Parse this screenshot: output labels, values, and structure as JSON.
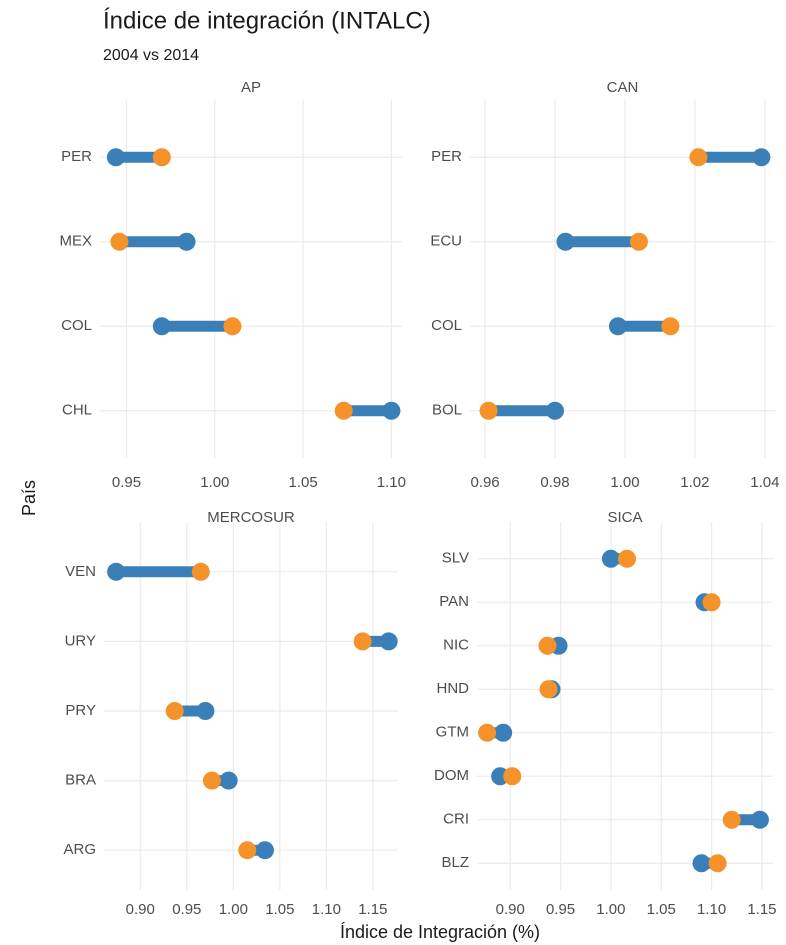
{
  "title": "Índice de integración (INTALC)",
  "subtitle": "2004 vs 2014",
  "x_label": "Índice de Integración (%)",
  "y_label": "País",
  "chart_data": [
    {
      "type": "dumbbell",
      "title": "AP",
      "categories": [
        "PER",
        "MEX",
        "COL",
        "CHL"
      ],
      "series": [
        {
          "color": "#3a7fb8",
          "values": [
            0.944,
            0.984,
            0.97,
            1.1
          ]
        },
        {
          "color": "#f5922a",
          "values": [
            0.97,
            0.946,
            1.01,
            1.073
          ]
        }
      ],
      "xlim": [
        0.935,
        1.106
      ],
      "xticks": [
        0.95,
        {
          "value": 1,
          "label": "1.00"
        },
        1.05,
        {
          "value": 1.1,
          "label": "1.10"
        }
      ],
      "grid": true
    },
    {
      "type": "dumbbell",
      "title": "CAN",
      "categories": [
        "PER",
        "ECU",
        "COL",
        "BOL"
      ],
      "series": [
        {
          "color": "#3a7fb8",
          "values": [
            1.039,
            0.983,
            0.998,
            0.98
          ]
        },
        {
          "color": "#f5922a",
          "values": [
            1.021,
            1.004,
            1.013,
            0.961
          ]
        }
      ],
      "xlim": [
        0.9557,
        1.0429
      ],
      "xticks": [
        0.96,
        0.98,
        {
          "value": 1,
          "label": "1.00"
        },
        1.02,
        1.04
      ],
      "grid": true
    },
    {
      "type": "dumbbell",
      "title": "MERCOSUR",
      "categories": [
        "VEN",
        "URY",
        "PRY",
        "BRA",
        "ARG"
      ],
      "series": [
        {
          "color": "#3a7fb8",
          "values": [
            0.874,
            1.167,
            0.97,
            0.995,
            1.034
          ]
        },
        {
          "color": "#f5922a",
          "values": [
            0.965,
            1.139,
            0.937,
            0.977,
            1.015
          ]
        }
      ],
      "xlim": [
        0.861,
        1.177
      ],
      "xticks": [
        {
          "value": 0.9,
          "label": "0.90"
        },
        0.95,
        {
          "value": 1,
          "label": "1.00"
        },
        1.05,
        {
          "value": 1.1,
          "label": "1.10"
        },
        1.15
      ],
      "grid": true
    },
    {
      "type": "dumbbell",
      "title": "SICA",
      "categories": [
        "SLV",
        "PAN",
        "NIC",
        "HND",
        "GTM",
        "DOM",
        "CRI",
        "BLZ"
      ],
      "series": [
        {
          "color": "#3a7fb8",
          "values": [
            1.0,
            1.093,
            0.948,
            0.941,
            0.893,
            0.89,
            1.148,
            1.09
          ]
        },
        {
          "color": "#f5922a",
          "values": [
            1.016,
            1.1,
            0.937,
            0.938,
            0.877,
            0.902,
            1.12,
            1.106
          ]
        }
      ],
      "xlim": [
        0.867,
        1.161
      ],
      "xticks": [
        {
          "value": 0.9,
          "label": "0.90"
        },
        0.95,
        {
          "value": 1,
          "label": "1.00"
        },
        1.05,
        {
          "value": 1.1,
          "label": "1.10"
        },
        1.15
      ],
      "grid": true
    }
  ]
}
